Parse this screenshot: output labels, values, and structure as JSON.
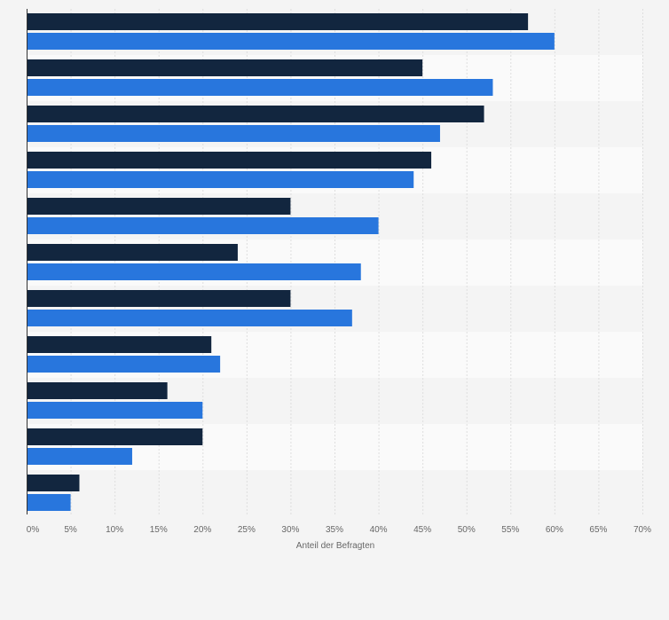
{
  "chart_data": {
    "type": "bar",
    "orientation": "horizontal",
    "xlabel": "Anteil der Befragten",
    "ylabel": "",
    "xlim": [
      0,
      70
    ],
    "x_ticks": [
      "0%",
      "5%",
      "10%",
      "15%",
      "20%",
      "25%",
      "30%",
      "35%",
      "40%",
      "45%",
      "50%",
      "55%",
      "60%",
      "65%",
      "70%"
    ],
    "grid": true,
    "legend": "none",
    "category_count": 11,
    "series": [
      {
        "color": "#12263f",
        "values": [
          57,
          45,
          52,
          46,
          30,
          24,
          30,
          21,
          16,
          20,
          6
        ]
      },
      {
        "color": "#2876dd",
        "values": [
          60,
          53,
          47,
          44,
          40,
          38,
          37,
          22,
          20,
          12,
          5
        ]
      }
    ]
  }
}
